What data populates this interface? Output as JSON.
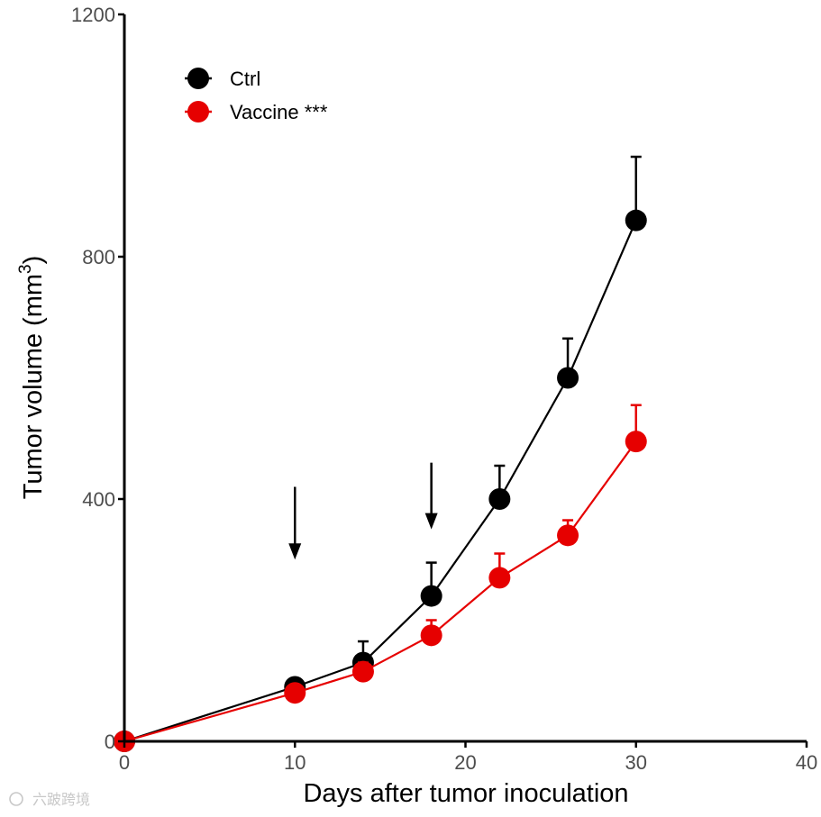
{
  "chart_data": {
    "type": "line",
    "xlabel": "Days after tumor inoculation",
    "ylabel": "Tumor volume (mm",
    "ylabel_superscript": "3",
    "ylabel_suffix": ")",
    "xlim": [
      0,
      40
    ],
    "ylim": [
      0,
      1200
    ],
    "x_ticks": [
      0,
      10,
      20,
      30,
      40
    ],
    "y_ticks": [
      0,
      400,
      800,
      1200
    ],
    "grid": false,
    "legend_position": "top-left",
    "series": [
      {
        "name": "Ctrl",
        "color": "#000000",
        "x": [
          0,
          10,
          14,
          18,
          22,
          26,
          30
        ],
        "y": [
          0,
          90,
          130,
          240,
          400,
          600,
          860
        ],
        "error_upper": [
          0,
          5,
          35,
          55,
          55,
          65,
          105
        ]
      },
      {
        "name": "Vaccine ***",
        "color": "#e60000",
        "x": [
          0,
          10,
          14,
          18,
          22,
          26,
          30
        ],
        "y": [
          0,
          80,
          115,
          175,
          270,
          340,
          495
        ],
        "error_upper": [
          0,
          5,
          15,
          25,
          40,
          25,
          60
        ]
      }
    ],
    "annotations": [
      {
        "type": "arrow",
        "x": 10,
        "y_from": 420,
        "y_to": 300
      },
      {
        "type": "arrow",
        "x": 18,
        "y_from": 460,
        "y_to": 350
      }
    ]
  },
  "watermark": {
    "text": "六跛跨境",
    "icon": "camera-icon"
  }
}
